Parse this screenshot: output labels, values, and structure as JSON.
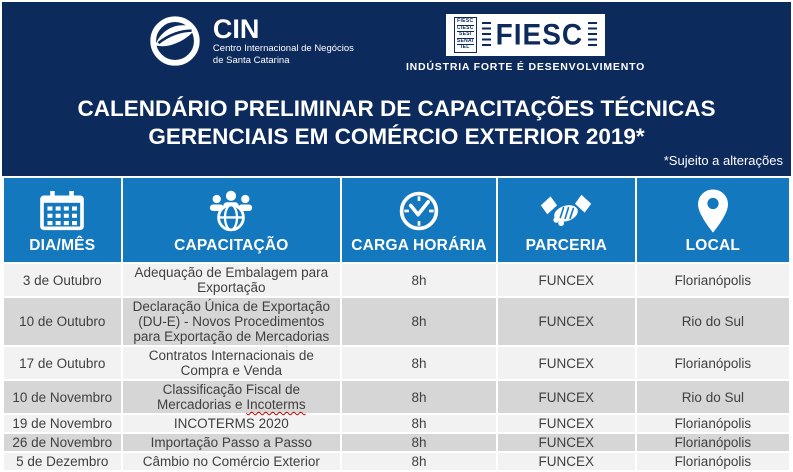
{
  "colors": {
    "navy": "#0d2a5c",
    "header_blue": "#1478be",
    "row_light": "#f2f2f2",
    "row_dark": "#d6d6d6",
    "text_dark": "#3f3f3f",
    "squiggle_red": "#c00000"
  },
  "logos": {
    "cin": {
      "acronym": "CIN",
      "name_line1": "Centro Internacional de Negócios",
      "name_line2": "de Santa Catarina",
      "icon": "cin-globe-swoosh-icon"
    },
    "fiesc": {
      "acronym": "FIESC",
      "system_entities": [
        "FIESC",
        "CIESC",
        "SESI",
        "SENAI",
        "IEL"
      ],
      "tagline": "INDÚSTRIA FORTE É DESENVOLVIMENTO"
    }
  },
  "title": {
    "line1": "CALENDÁRIO PRELIMINAR DE CAPACITAÇÕES TÉCNICAS",
    "line2": "GERENCIAIS EM COMÉRCIO EXTERIOR 2019*",
    "note": "*Sujeito a alterações"
  },
  "table": {
    "columns": [
      {
        "key": "dia",
        "label": "DIA/MÊS",
        "icon": "calendar-icon"
      },
      {
        "key": "capacitacao",
        "label": "CAPACITAÇÃO",
        "icon": "people-globe-icon"
      },
      {
        "key": "carga",
        "label": "CARGA HORÁRIA",
        "icon": "clock-icon"
      },
      {
        "key": "parceria",
        "label": "PARCERIA",
        "icon": "handshake-icon"
      },
      {
        "key": "local",
        "label": "LOCAL",
        "icon": "location-pin-icon"
      }
    ],
    "rows": [
      {
        "dia": "3 de Outubro",
        "capacitacao": "Adequação de Embalagem para Exportação",
        "carga": "8h",
        "parceria": "FUNCEX",
        "local": "Florianópolis"
      },
      {
        "dia": "10 de Outubro",
        "capacitacao": "Declaração Única de Exportação (DU-E) - Novos Procedimentos para Exportação de Mercadorias",
        "carga": "8h",
        "parceria": "FUNCEX",
        "local": "Rio do Sul"
      },
      {
        "dia": "17 de Outubro",
        "capacitacao": "Contratos Internacionais de Compra e Venda",
        "carga": "8h",
        "parceria": "FUNCEX",
        "local": "Florianópolis"
      },
      {
        "dia": "10 de Novembro",
        "capacitacao": "Classificação Fiscal de Mercadorias e Incoterms",
        "squiggle_word": "Incoterms",
        "carga": "8h",
        "parceria": "FUNCEX",
        "local": "Rio do Sul"
      },
      {
        "dia": "19 de Novembro",
        "capacitacao": "INCOTERMS 2020",
        "carga": "8h",
        "parceria": "FUNCEX",
        "local": "Florianópolis"
      },
      {
        "dia": "26 de Novembro",
        "capacitacao": "Importação Passo a Passo",
        "carga": "8h",
        "parceria": "FUNCEX",
        "local": "Florianópolis"
      },
      {
        "dia": "5 de Dezembro",
        "capacitacao": "Câmbio no Comércio Exterior",
        "carga": "8h",
        "parceria": "FUNCEX",
        "local": "Florianópolis"
      }
    ]
  }
}
